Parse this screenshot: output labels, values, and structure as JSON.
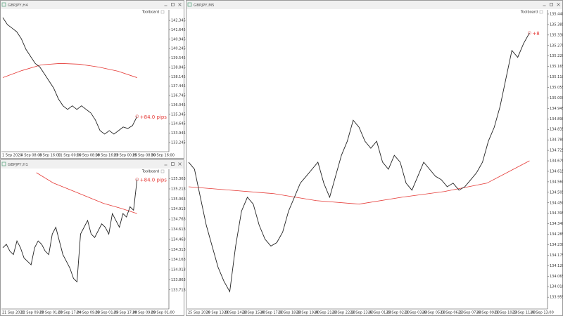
{
  "windows": [
    {
      "title": "GBPJPY,H4",
      "toolbar_label": "Toolboard",
      "annotation": "+84.0 pips",
      "ylim": [
        132.56,
        143.135
      ],
      "yticks": [
        142.345,
        141.645,
        140.945,
        140.245,
        139.545,
        138.845,
        138.145,
        137.445,
        136.745,
        136.045,
        135.345,
        134.645,
        133.945,
        133.245
      ],
      "time_labels": [
        "1 Sep 2020",
        "4 Sep 08:00",
        "8 Sep 16:00",
        "11 Sep 00:00",
        "16 Sep 08:00",
        "18 Sep 16:00",
        "23 Sep 00:00",
        "25 Sep 08:00",
        "30 Sep 16:00"
      ],
      "price": [
        142.55,
        142.03,
        141.77,
        141.5,
        140.98,
        140.19,
        139.66,
        139.14,
        138.87,
        138.35,
        137.82,
        137.29,
        136.5,
        135.98,
        135.71,
        135.98,
        135.71,
        135.98,
        135.71,
        135.45,
        134.92,
        134.13,
        133.87,
        134.13,
        133.87,
        134.13,
        134.4,
        134.29,
        134.5,
        135.19
      ],
      "ma": [
        138.08,
        138.61,
        139.03,
        139.14,
        139.08,
        138.87,
        138.56,
        138.08
      ],
      "price_color": "#222222",
      "ma_color": "#e53935"
    },
    {
      "title": "GBPJPY,H1",
      "toolbar_label": "Toolboard",
      "annotation": "+84.0 pips",
      "ylim": [
        133.429,
        135.505
      ],
      "yticks": [
        135.363,
        135.213,
        135.063,
        134.913,
        134.763,
        134.613,
        134.463,
        134.313,
        134.163,
        134.013,
        133.863,
        133.713
      ],
      "time_labels": [
        "21 Sep 2020",
        "22 Sep 09:00",
        "23 Sep 01:00",
        "23 Sep 17:00",
        "24 Sep 09:00",
        "25 Sep 01:00",
        "25 Sep 17:00",
        "28 Sep 09:00",
        "29 Sep 01:00"
      ],
      "price": [
        134.339,
        134.39,
        134.288,
        134.237,
        134.44,
        134.339,
        134.187,
        134.136,
        134.085,
        134.339,
        134.44,
        134.39,
        134.288,
        134.237,
        134.542,
        134.643,
        134.44,
        134.237,
        134.136,
        134.035,
        133.883,
        133.832,
        134.542,
        134.643,
        134.744,
        134.542,
        134.491,
        134.592,
        134.694,
        134.643,
        134.542,
        134.846,
        134.744,
        134.643,
        134.846,
        134.795,
        134.947,
        134.897,
        135.353
      ],
      "ma": [
        null,
        null,
        135.454,
        135.302,
        135.201,
        135.099,
        134.998,
        134.927,
        134.846
      ],
      "price_color": "#222222",
      "ma_color": "#e53935"
    },
    {
      "title": "GBPJPY,M5",
      "toolbar_label": "Toolboard",
      "annotation": "+8",
      "ylim": [
        133.893,
        135.462
      ],
      "yticks": [
        {
          "value": 135.44,
          "label": "135.440"
        },
        135.385,
        {
          "value": 135.33,
          "label": "135.330"
        },
        135.275,
        {
          "value": 135.22,
          "label": "135.220"
        },
        135.165,
        {
          "value": 135.11,
          "label": "135.110"
        },
        135.055,
        {
          "value": 135,
          "label": "135.000"
        },
        134.945,
        {
          "value": 134.89,
          "label": "134.890"
        },
        134.835,
        {
          "value": 134.78,
          "label": "134.780"
        },
        134.725,
        {
          "value": 134.67,
          "label": "134.670"
        },
        134.615,
        {
          "value": 134.56,
          "label": "134.560"
        },
        134.505,
        {
          "value": 134.45,
          "label": "134.450"
        },
        134.395,
        {
          "value": 134.34,
          "label": "134.340"
        },
        134.285,
        {
          "value": 134.23,
          "label": "134.230"
        },
        134.175,
        {
          "value": 134.12,
          "label": "134.120"
        },
        134.065,
        {
          "value": 134.01,
          "label": "134.010"
        },
        133.955
      ],
      "time_labels": [
        "25 Sep 2020",
        "28 Sep 13:00",
        "28 Sep 14:20",
        "28 Sep 15:40",
        "28 Sep 17:00",
        "28 Sep 18:20",
        "28 Sep 19:40",
        "28 Sep 21:00",
        "28 Sep 22:20",
        "28 Sep 23:40",
        "29 Sep 01:00",
        "29 Sep 02:20",
        "29 Sep 03:40",
        "29 Sep 05:00",
        "29 Sep 06:20",
        "29 Sep 07:40",
        "29 Sep 09:00",
        "29 Sep 10:20",
        "29 Sep 11:40",
        "29 Sep 13:00"
      ],
      "price": [
        134.663,
        134.626,
        134.479,
        134.333,
        134.223,
        134.113,
        134.039,
        133.984,
        134.223,
        134.406,
        134.479,
        134.443,
        134.333,
        134.259,
        134.223,
        134.241,
        134.296,
        134.406,
        134.479,
        134.553,
        134.589,
        134.626,
        134.663,
        134.553,
        134.479,
        134.589,
        134.699,
        134.773,
        134.883,
        134.846,
        134.773,
        134.736,
        134.773,
        134.663,
        134.626,
        134.699,
        134.663,
        134.553,
        134.516,
        134.589,
        134.663,
        134.626,
        134.589,
        134.571,
        134.534,
        134.553,
        134.516,
        134.534,
        134.571,
        134.608,
        134.663,
        134.773,
        134.846,
        134.956,
        135.103,
        135.249,
        135.213,
        135.286,
        135.341
      ],
      "ma": [
        134.534,
        134.516,
        134.498,
        134.461,
        134.443,
        134.479,
        134.509,
        134.553,
        134.67
      ],
      "price_color": "#222222",
      "ma_color": "#e53935"
    }
  ]
}
